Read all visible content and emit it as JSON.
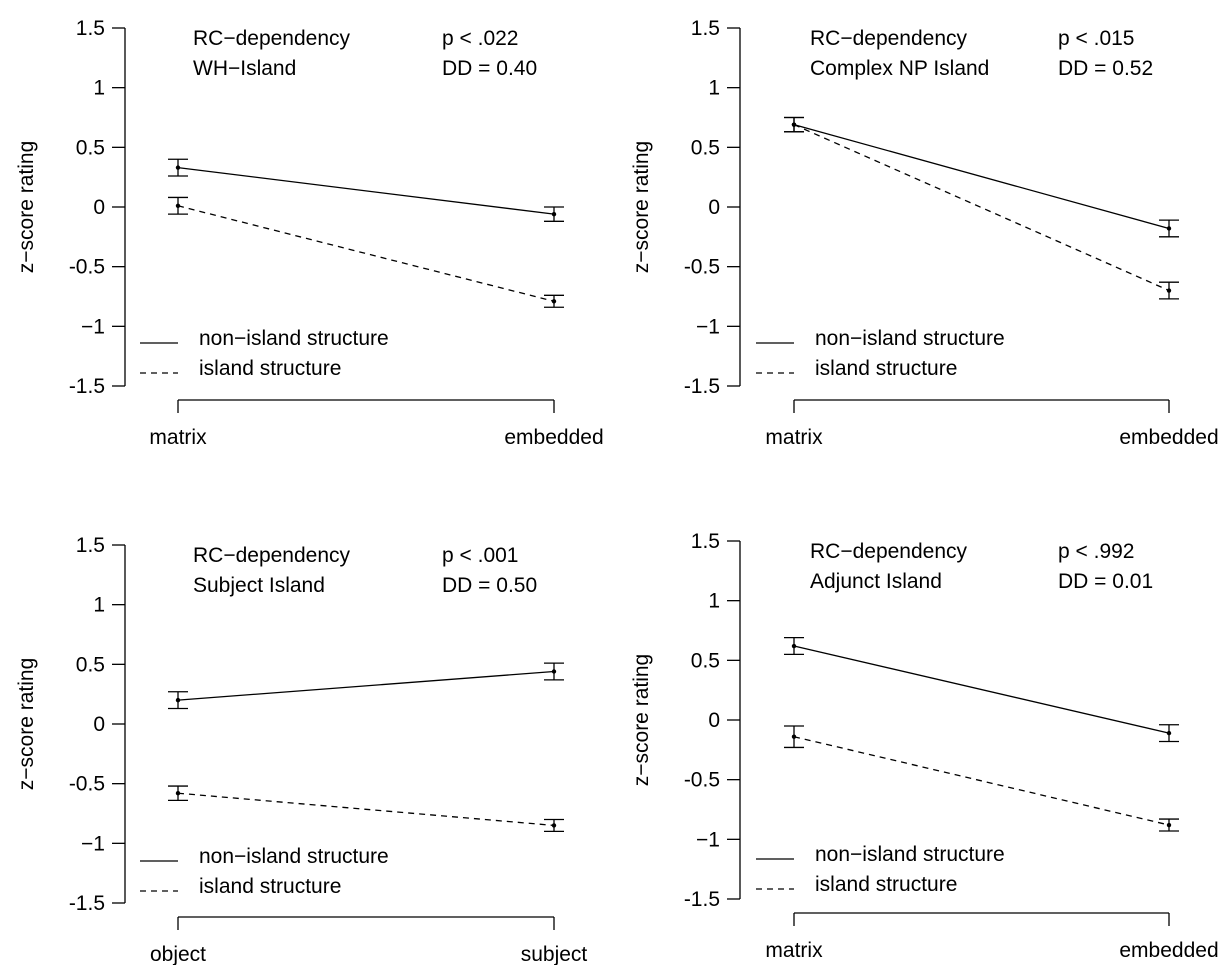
{
  "chart_data": [
    {
      "type": "line",
      "ylabel": "z−score rating",
      "ylim": [
        -1.5,
        1.5
      ],
      "yticks": [
        1.5,
        1,
        0.5,
        0,
        -0.5,
        -1,
        -1.5
      ],
      "ytick_labels": [
        "1.5",
        "1",
        "0.5",
        "0",
        "-0.5",
        "−1",
        "-1.5"
      ],
      "categories": [
        "matrix",
        "embedded"
      ],
      "annotations": {
        "dependency": "RC−dependency",
        "island": "WH−Island",
        "p_value": "p < .022",
        "dd": "DD = 0.40"
      },
      "series": [
        {
          "name": "non−island structure",
          "style": "solid",
          "values": [
            0.33,
            -0.06
          ],
          "err": [
            0.07,
            0.06
          ]
        },
        {
          "name": "island structure",
          "style": "dashed",
          "values": [
            0.01,
            -0.79
          ],
          "err": [
            0.07,
            0.05
          ]
        }
      ]
    },
    {
      "type": "line",
      "ylabel": "z−score rating",
      "ylim": [
        -1.5,
        1.5
      ],
      "yticks": [
        1.5,
        1,
        0.5,
        0,
        -0.5,
        -1,
        -1.5
      ],
      "ytick_labels": [
        "1.5",
        "1",
        "0.5",
        "0",
        "-0.5",
        "−1",
        "-1.5"
      ],
      "categories": [
        "matrix",
        "embedded"
      ],
      "annotations": {
        "dependency": "RC−dependency",
        "island": "Complex NP Island",
        "p_value": "p < .015",
        "dd": "DD = 0.52"
      },
      "series": [
        {
          "name": "non−island structure",
          "style": "solid",
          "values": [
            0.69,
            -0.18
          ],
          "err": [
            0.06,
            0.07
          ]
        },
        {
          "name": "island structure",
          "style": "dashed",
          "values": [
            0.69,
            -0.7
          ],
          "err": [
            0.06,
            0.07
          ]
        }
      ]
    },
    {
      "type": "line",
      "ylabel": "z−score rating",
      "ylim": [
        -1.5,
        1.5
      ],
      "yticks": [
        1.5,
        1,
        0.5,
        0,
        -0.5,
        -1,
        -1.5
      ],
      "ytick_labels": [
        "1.5",
        "1",
        "0.5",
        "0",
        "-0.5",
        "−1",
        "-1.5"
      ],
      "categories": [
        "object",
        "subject"
      ],
      "annotations": {
        "dependency": "RC−dependency",
        "island": "Subject Island",
        "p_value": "p < .001",
        "dd": "DD = 0.50"
      },
      "series": [
        {
          "name": "non−island structure",
          "style": "solid",
          "values": [
            0.2,
            0.44
          ],
          "err": [
            0.07,
            0.07
          ]
        },
        {
          "name": "island structure",
          "style": "dashed",
          "values": [
            -0.58,
            -0.85
          ],
          "err": [
            0.06,
            0.05
          ]
        }
      ]
    },
    {
      "type": "line",
      "ylabel": "z−score rating",
      "ylim": [
        -1.5,
        1.5
      ],
      "yticks": [
        1.5,
        1,
        0.5,
        0,
        -0.5,
        -1,
        -1.5
      ],
      "ytick_labels": [
        "1.5",
        "1",
        "0.5",
        "0",
        "-0.5",
        "−1",
        "-1.5"
      ],
      "categories": [
        "matrix",
        "embedded"
      ],
      "annotations": {
        "dependency": "RC−dependency",
        "island": "Adjunct Island",
        "p_value": "p < .992",
        "dd": "DD = 0.01"
      },
      "series": [
        {
          "name": "non−island structure",
          "style": "solid",
          "values": [
            0.62,
            -0.11
          ],
          "err": [
            0.07,
            0.07
          ]
        },
        {
          "name": "island structure",
          "style": "dashed",
          "values": [
            -0.14,
            -0.88
          ],
          "err": [
            0.09,
            0.05
          ]
        }
      ]
    }
  ]
}
